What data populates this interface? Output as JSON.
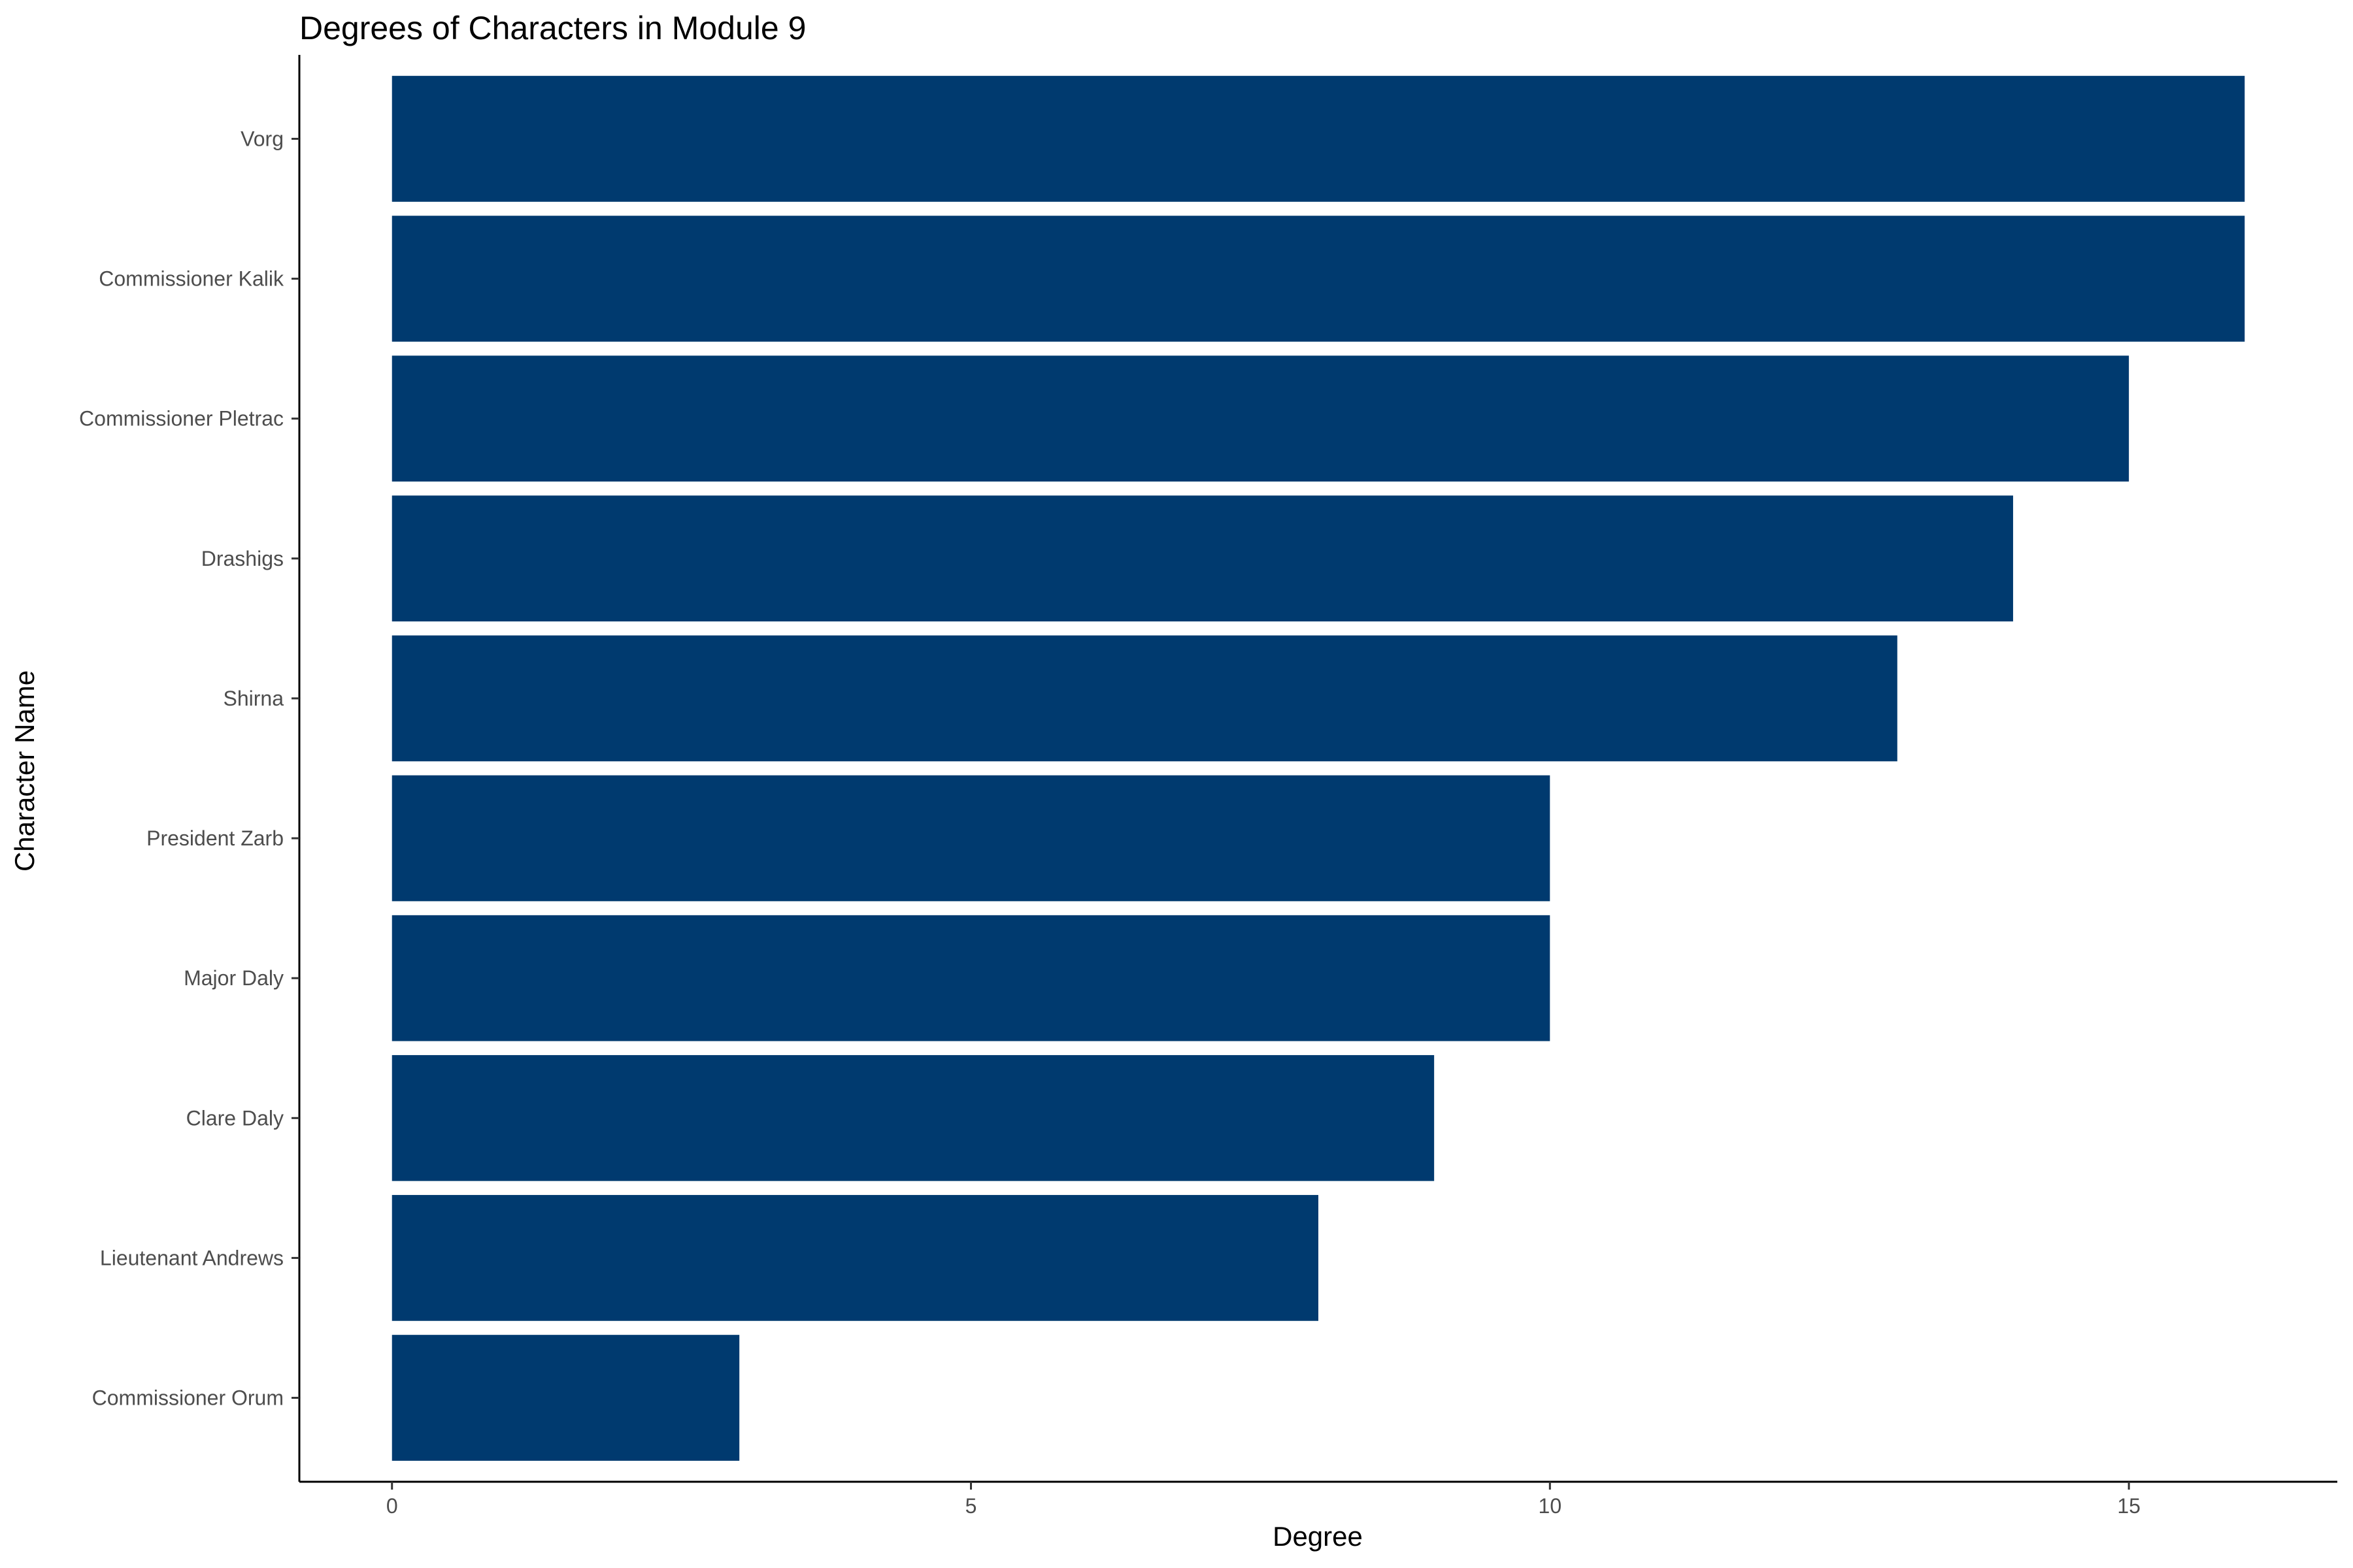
{
  "chart_data": {
    "type": "bar",
    "orientation": "horizontal",
    "title": "Degrees of Characters in Module 9",
    "xlabel": "Degree",
    "ylabel": "Character Name",
    "categories": [
      "Vorg",
      "Commissioner Kalik",
      "Commissioner Pletrac",
      "Drashigs",
      "Shirna",
      "President Zarb",
      "Major Daly",
      "Clare Daly",
      "Lieutenant Andrews",
      "Commissioner Orum"
    ],
    "values": [
      16,
      16,
      15,
      14,
      13,
      10,
      10,
      9,
      8,
      3
    ],
    "xlim": [
      -0.8,
      16.8
    ],
    "xticks": [
      0,
      5,
      10,
      15
    ],
    "xtick_labels": [
      "0",
      "5",
      "10",
      "15"
    ],
    "grid": false,
    "legend": "none",
    "bar_color": "#003a6f"
  }
}
